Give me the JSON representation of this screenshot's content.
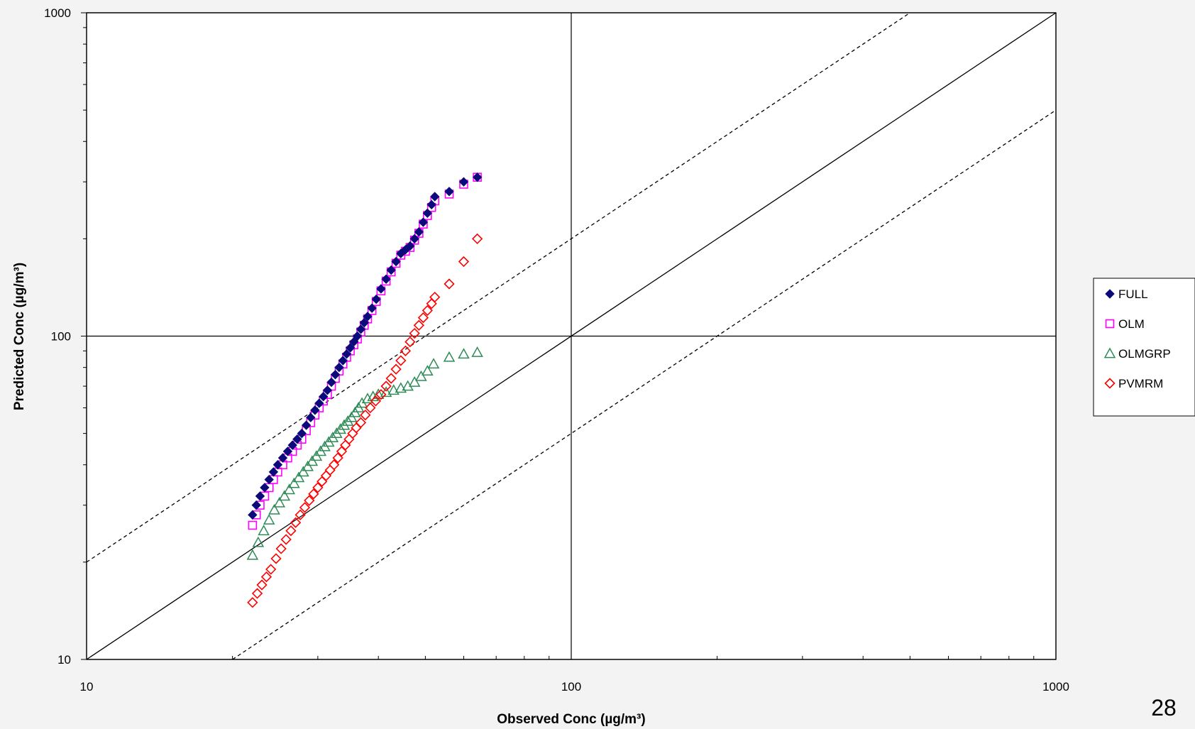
{
  "page_number": "28",
  "chart_data": {
    "type": "scatter",
    "title": "",
    "xlabel": "Observed  Conc (µg/m³)",
    "ylabel": "Predicted Conc (µg/m³)",
    "xscale": "log",
    "yscale": "log",
    "xlim": [
      10,
      1000
    ],
    "ylim": [
      10,
      1000
    ],
    "xticks": [
      "10",
      "100",
      "1000"
    ],
    "yticks": [
      "10",
      "100",
      "1000"
    ],
    "grid": "major",
    "legend_position": "right",
    "reference_lines": [
      {
        "style": "solid",
        "factor": 1
      },
      {
        "style": "dashed",
        "factor": 2
      },
      {
        "style": "dashed",
        "factor": 0.5
      }
    ],
    "series": [
      {
        "name": "FULL",
        "marker": "diamond-filled",
        "color": "#0a0a7a",
        "x": [
          22.0,
          22.4,
          22.8,
          23.3,
          23.8,
          24.3,
          24.8,
          25.4,
          26.0,
          26.6,
          27.2,
          27.8,
          28.4,
          29.0,
          29.6,
          30.2,
          30.8,
          31.4,
          32.0,
          32.6,
          33.2,
          33.8,
          34.4,
          35.0,
          35.6,
          36.2,
          36.8,
          37.4,
          38.0,
          38.8,
          39.6,
          40.5,
          41.5,
          42.5,
          43.5,
          44.5,
          45.5,
          46.5,
          47.5,
          48.5,
          49.5,
          50.5,
          51.5,
          52.3,
          56.0,
          60.0,
          64.0
        ],
        "y": [
          28,
          30,
          32,
          34,
          36,
          38,
          40,
          42,
          44,
          46,
          48,
          50,
          53,
          56,
          59,
          62,
          65,
          68,
          72,
          76,
          80,
          84,
          88,
          92,
          96,
          100,
          105,
          110,
          115,
          122,
          130,
          140,
          150,
          160,
          170,
          180,
          185,
          190,
          200,
          210,
          225,
          240,
          255,
          270,
          280,
          300,
          310
        ]
      },
      {
        "name": "OLM",
        "marker": "square-open",
        "color": "#ff00ff",
        "x": [
          22.0,
          22.4,
          22.8,
          23.3,
          23.8,
          24.3,
          24.8,
          25.4,
          26.0,
          26.6,
          27.2,
          27.8,
          28.4,
          29.0,
          29.6,
          30.2,
          30.8,
          31.4,
          32.0,
          32.6,
          33.2,
          33.8,
          34.4,
          35.0,
          35.6,
          36.2,
          36.8,
          37.4,
          38.0,
          38.8,
          39.6,
          40.5,
          41.5,
          42.5,
          43.5,
          44.5,
          45.5,
          46.5,
          47.5,
          48.5,
          49.5,
          50.5,
          51.5,
          52.3,
          56.0,
          60.0,
          64.0
        ],
        "y": [
          26,
          28,
          30,
          32,
          34,
          36,
          38,
          40,
          42,
          44,
          46,
          48,
          51,
          54,
          57,
          60,
          63,
          66,
          70,
          74,
          78,
          82,
          86,
          90,
          94,
          98,
          103,
          108,
          113,
          120,
          128,
          138,
          148,
          158,
          168,
          178,
          183,
          188,
          198,
          208,
          222,
          236,
          250,
          262,
          275,
          295,
          310
        ]
      },
      {
        "name": "OLMGRP",
        "marker": "triangle-open",
        "color": "#2e8b57",
        "x": [
          22.0,
          22.6,
          23.2,
          23.8,
          24.4,
          25.0,
          25.6,
          26.2,
          26.8,
          27.4,
          28.0,
          28.6,
          29.2,
          29.8,
          30.4,
          31.0,
          31.6,
          32.2,
          32.8,
          33.4,
          34.0,
          34.6,
          35.2,
          35.8,
          36.4,
          37.0,
          38.0,
          39.0,
          40.0,
          41.5,
          43.0,
          44.5,
          46.0,
          47.5,
          49.0,
          50.5,
          52.0,
          56.0,
          60.0,
          64.0
        ],
        "y": [
          21,
          23,
          25,
          27,
          29,
          30.5,
          32,
          33.5,
          35,
          36.5,
          38,
          39.5,
          41,
          42.5,
          44,
          45.5,
          47,
          48.5,
          50,
          51.5,
          53,
          54.5,
          56,
          58,
          60,
          62,
          64,
          65,
          66,
          67,
          68,
          69,
          70,
          72,
          75,
          78,
          82,
          86,
          88,
          89
        ]
      },
      {
        "name": "PVMRM",
        "marker": "diamond-open",
        "color": "#ff0000",
        "x": [
          22.0,
          22.5,
          23.0,
          23.5,
          24.0,
          24.6,
          25.2,
          25.8,
          26.4,
          27.0,
          27.6,
          28.2,
          28.8,
          29.4,
          30.0,
          30.6,
          31.2,
          31.8,
          32.4,
          33.0,
          33.6,
          34.2,
          34.8,
          35.4,
          36.0,
          36.8,
          37.6,
          38.5,
          39.5,
          40.5,
          41.5,
          42.5,
          43.5,
          44.5,
          45.5,
          46.5,
          47.5,
          48.5,
          49.5,
          50.5,
          51.5,
          52.3,
          56.0,
          60.0,
          64.0
        ],
        "y": [
          15,
          16,
          17,
          18,
          19,
          20.5,
          22,
          23.5,
          25,
          26.5,
          28,
          29.5,
          31,
          32.5,
          34,
          35.5,
          37,
          38.5,
          40,
          42,
          44,
          46,
          48,
          50,
          52,
          54,
          57,
          60,
          63,
          66,
          70,
          74,
          79,
          84,
          90,
          96,
          102,
          108,
          114,
          120,
          126,
          132,
          145,
          170,
          200
        ]
      }
    ]
  }
}
